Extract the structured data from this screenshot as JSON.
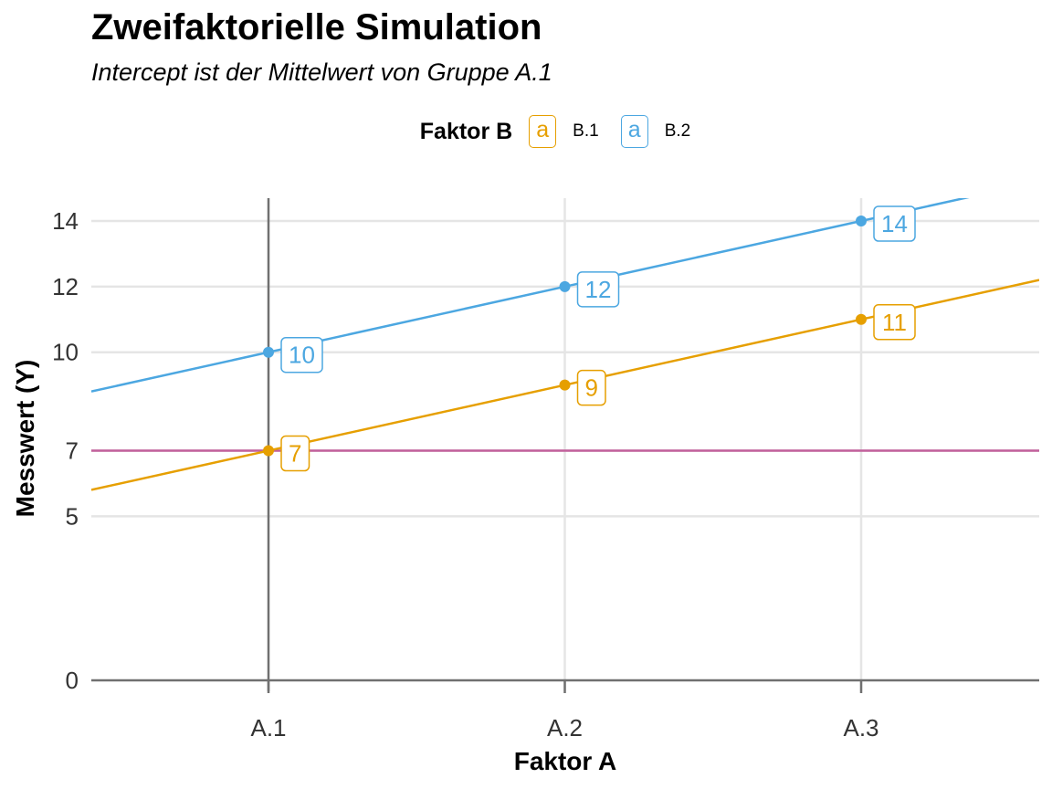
{
  "chart_data": {
    "type": "line",
    "title": "Zweifaktorielle Simulation",
    "subtitle": "Intercept ist der Mittelwert von Gruppe A.1",
    "xlabel": "Faktor A",
    "ylabel": "Messwert (Y)",
    "categories": [
      "A.1",
      "A.2",
      "A.3"
    ],
    "y_ticks": [
      0,
      5,
      7,
      10,
      12,
      14
    ],
    "ylim": [
      0,
      14.7
    ],
    "legend": {
      "title": "Faktor B",
      "key_glyph": "a",
      "position": "top"
    },
    "series": [
      {
        "name": "B.1",
        "values": [
          7,
          9,
          11
        ],
        "color": "#E69F00"
      },
      {
        "name": "B.2",
        "values": [
          10,
          12,
          14
        ],
        "color": "#4CA7E1"
      }
    ],
    "reference_line": {
      "y": 7,
      "color": "#C2609B"
    },
    "colors": {
      "grid": "#E5E5E5",
      "axis": "#707070",
      "text": "#333333"
    }
  }
}
